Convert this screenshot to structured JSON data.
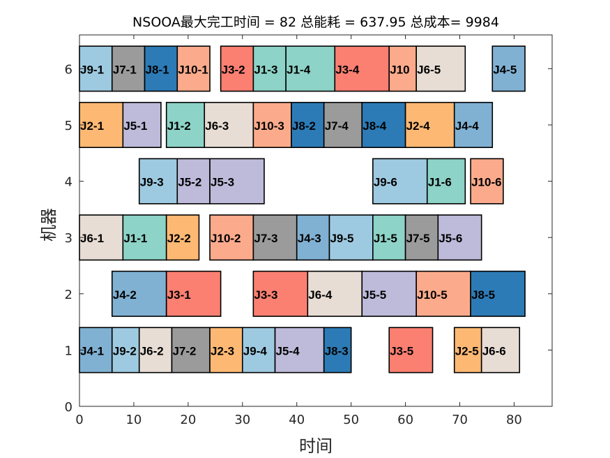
{
  "chart_data": {
    "type": "gantt",
    "title": "NSOOA最大完工时间 = 82 总能耗 = 637.95 总成本= 9984",
    "xlabel": "时间",
    "ylabel": "机器",
    "xlim": [
      0,
      87
    ],
    "ylim": [
      0,
      6.6
    ],
    "xticks": [
      0,
      10,
      20,
      30,
      40,
      50,
      60,
      70,
      80
    ],
    "yticks": [
      0,
      1,
      2,
      3,
      4,
      5,
      6
    ],
    "grid": false,
    "job_colors": {
      "J1": "#8dd3c7",
      "J2": "#fdb974",
      "J3": "#fb8072",
      "J4": "#80b1d3",
      "J5": "#bebada",
      "J6": "#e7ddd5",
      "J7": "#9b9b9b",
      "J8": "#2c7bb6",
      "J9": "#9ecae1",
      "J10": "#fbab8c"
    },
    "tasks": [
      {
        "machine": 6,
        "job": "J9",
        "label": "J9-1",
        "start": 0,
        "end": 6
      },
      {
        "machine": 6,
        "job": "J7",
        "label": "J7-1",
        "start": 6,
        "end": 12
      },
      {
        "machine": 6,
        "job": "J8",
        "label": "J8-1",
        "start": 12,
        "end": 18
      },
      {
        "machine": 6,
        "job": "J10",
        "label": "J10-1",
        "start": 18,
        "end": 24
      },
      {
        "machine": 6,
        "job": "J3",
        "label": "J3-2",
        "start": 26,
        "end": 32
      },
      {
        "machine": 6,
        "job": "J1",
        "label": "J1-3",
        "start": 32,
        "end": 38
      },
      {
        "machine": 6,
        "job": "J1",
        "label": "J1-4",
        "start": 38,
        "end": 47
      },
      {
        "machine": 6,
        "job": "J3",
        "label": "J3-4",
        "start": 47,
        "end": 57
      },
      {
        "machine": 6,
        "job": "J10",
        "label": "J10",
        "start": 57,
        "end": 62
      },
      {
        "machine": 6,
        "job": "J6",
        "label": "J6-5",
        "start": 62,
        "end": 71
      },
      {
        "machine": 6,
        "job": "J4",
        "label": "J4-5",
        "start": 76,
        "end": 82
      },
      {
        "machine": 5,
        "job": "J2",
        "label": "J2-1",
        "start": 0,
        "end": 8
      },
      {
        "machine": 5,
        "job": "J5",
        "label": "J5-1",
        "start": 8,
        "end": 15
      },
      {
        "machine": 5,
        "job": "J1",
        "label": "J1-2",
        "start": 16,
        "end": 23
      },
      {
        "machine": 5,
        "job": "J6",
        "label": "J6-3",
        "start": 23,
        "end": 32
      },
      {
        "machine": 5,
        "job": "J10",
        "label": "J10-3",
        "start": 32,
        "end": 39
      },
      {
        "machine": 5,
        "job": "J8",
        "label": "J8-2",
        "start": 39,
        "end": 45
      },
      {
        "machine": 5,
        "job": "J7",
        "label": "J7-4",
        "start": 45,
        "end": 52
      },
      {
        "machine": 5,
        "job": "J8",
        "label": "J8-4",
        "start": 52,
        "end": 60
      },
      {
        "machine": 5,
        "job": "J2",
        "label": "J2-4",
        "start": 60,
        "end": 69
      },
      {
        "machine": 5,
        "job": "J4",
        "label": "J4-4",
        "start": 69,
        "end": 76
      },
      {
        "machine": 4,
        "job": "J9",
        "label": "J9-3",
        "start": 11,
        "end": 18
      },
      {
        "machine": 4,
        "job": "J5",
        "label": "J5-2",
        "start": 18,
        "end": 24
      },
      {
        "machine": 4,
        "job": "J5",
        "label": "J5-3",
        "start": 24,
        "end": 34
      },
      {
        "machine": 4,
        "job": "J9",
        "label": "J9-6",
        "start": 54,
        "end": 64
      },
      {
        "machine": 4,
        "job": "J1",
        "label": "J1-6",
        "start": 64,
        "end": 71
      },
      {
        "machine": 4,
        "job": "J10",
        "label": "J10-6",
        "start": 72,
        "end": 78
      },
      {
        "machine": 3,
        "job": "J6",
        "label": "J6-1",
        "start": 0,
        "end": 8
      },
      {
        "machine": 3,
        "job": "J1",
        "label": "J1-1",
        "start": 8,
        "end": 16
      },
      {
        "machine": 3,
        "job": "J2",
        "label": "J2-2",
        "start": 16,
        "end": 22
      },
      {
        "machine": 3,
        "job": "J10",
        "label": "J10-2",
        "start": 24,
        "end": 32
      },
      {
        "machine": 3,
        "job": "J7",
        "label": "J7-3",
        "start": 32,
        "end": 40
      },
      {
        "machine": 3,
        "job": "J4",
        "label": "J4-3",
        "start": 40,
        "end": 46
      },
      {
        "machine": 3,
        "job": "J9",
        "label": "J9-5",
        "start": 46,
        "end": 54
      },
      {
        "machine": 3,
        "job": "J1",
        "label": "J1-5",
        "start": 54,
        "end": 60
      },
      {
        "machine": 3,
        "job": "J7",
        "label": "J7-5",
        "start": 60,
        "end": 66
      },
      {
        "machine": 3,
        "job": "J5",
        "label": "J5-6",
        "start": 66,
        "end": 74
      },
      {
        "machine": 2,
        "job": "J4",
        "label": "J4-2",
        "start": 6,
        "end": 16
      },
      {
        "machine": 2,
        "job": "J3",
        "label": "J3-1",
        "start": 16,
        "end": 26
      },
      {
        "machine": 2,
        "job": "J3",
        "label": "J3-3",
        "start": 32,
        "end": 42
      },
      {
        "machine": 2,
        "job": "J6",
        "label": "J6-4",
        "start": 42,
        "end": 52
      },
      {
        "machine": 2,
        "job": "J5",
        "label": "J5-5",
        "start": 52,
        "end": 62
      },
      {
        "machine": 2,
        "job": "J10",
        "label": "J10-5",
        "start": 62,
        "end": 72
      },
      {
        "machine": 2,
        "job": "J8",
        "label": "J8-5",
        "start": 72,
        "end": 82
      },
      {
        "machine": 1,
        "job": "J4",
        "label": "J4-1",
        "start": 0,
        "end": 6
      },
      {
        "machine": 1,
        "job": "J9",
        "label": "J9-2",
        "start": 6,
        "end": 11
      },
      {
        "machine": 1,
        "job": "J6",
        "label": "J6-2",
        "start": 11,
        "end": 17
      },
      {
        "machine": 1,
        "job": "J7",
        "label": "J7-2",
        "start": 17,
        "end": 24
      },
      {
        "machine": 1,
        "job": "J2",
        "label": "J2-3",
        "start": 24,
        "end": 30
      },
      {
        "machine": 1,
        "job": "J9",
        "label": "J9-4",
        "start": 30,
        "end": 36
      },
      {
        "machine": 1,
        "job": "J5",
        "label": "J5-4",
        "start": 36,
        "end": 45
      },
      {
        "machine": 1,
        "job": "J8",
        "label": "J8-3",
        "start": 45,
        "end": 50
      },
      {
        "machine": 1,
        "job": "J3",
        "label": "J3-5",
        "start": 57,
        "end": 65
      },
      {
        "machine": 1,
        "job": "J2",
        "label": "J2-5",
        "start": 69,
        "end": 74
      },
      {
        "machine": 1,
        "job": "J6",
        "label": "J6-6",
        "start": 74,
        "end": 81
      }
    ]
  }
}
